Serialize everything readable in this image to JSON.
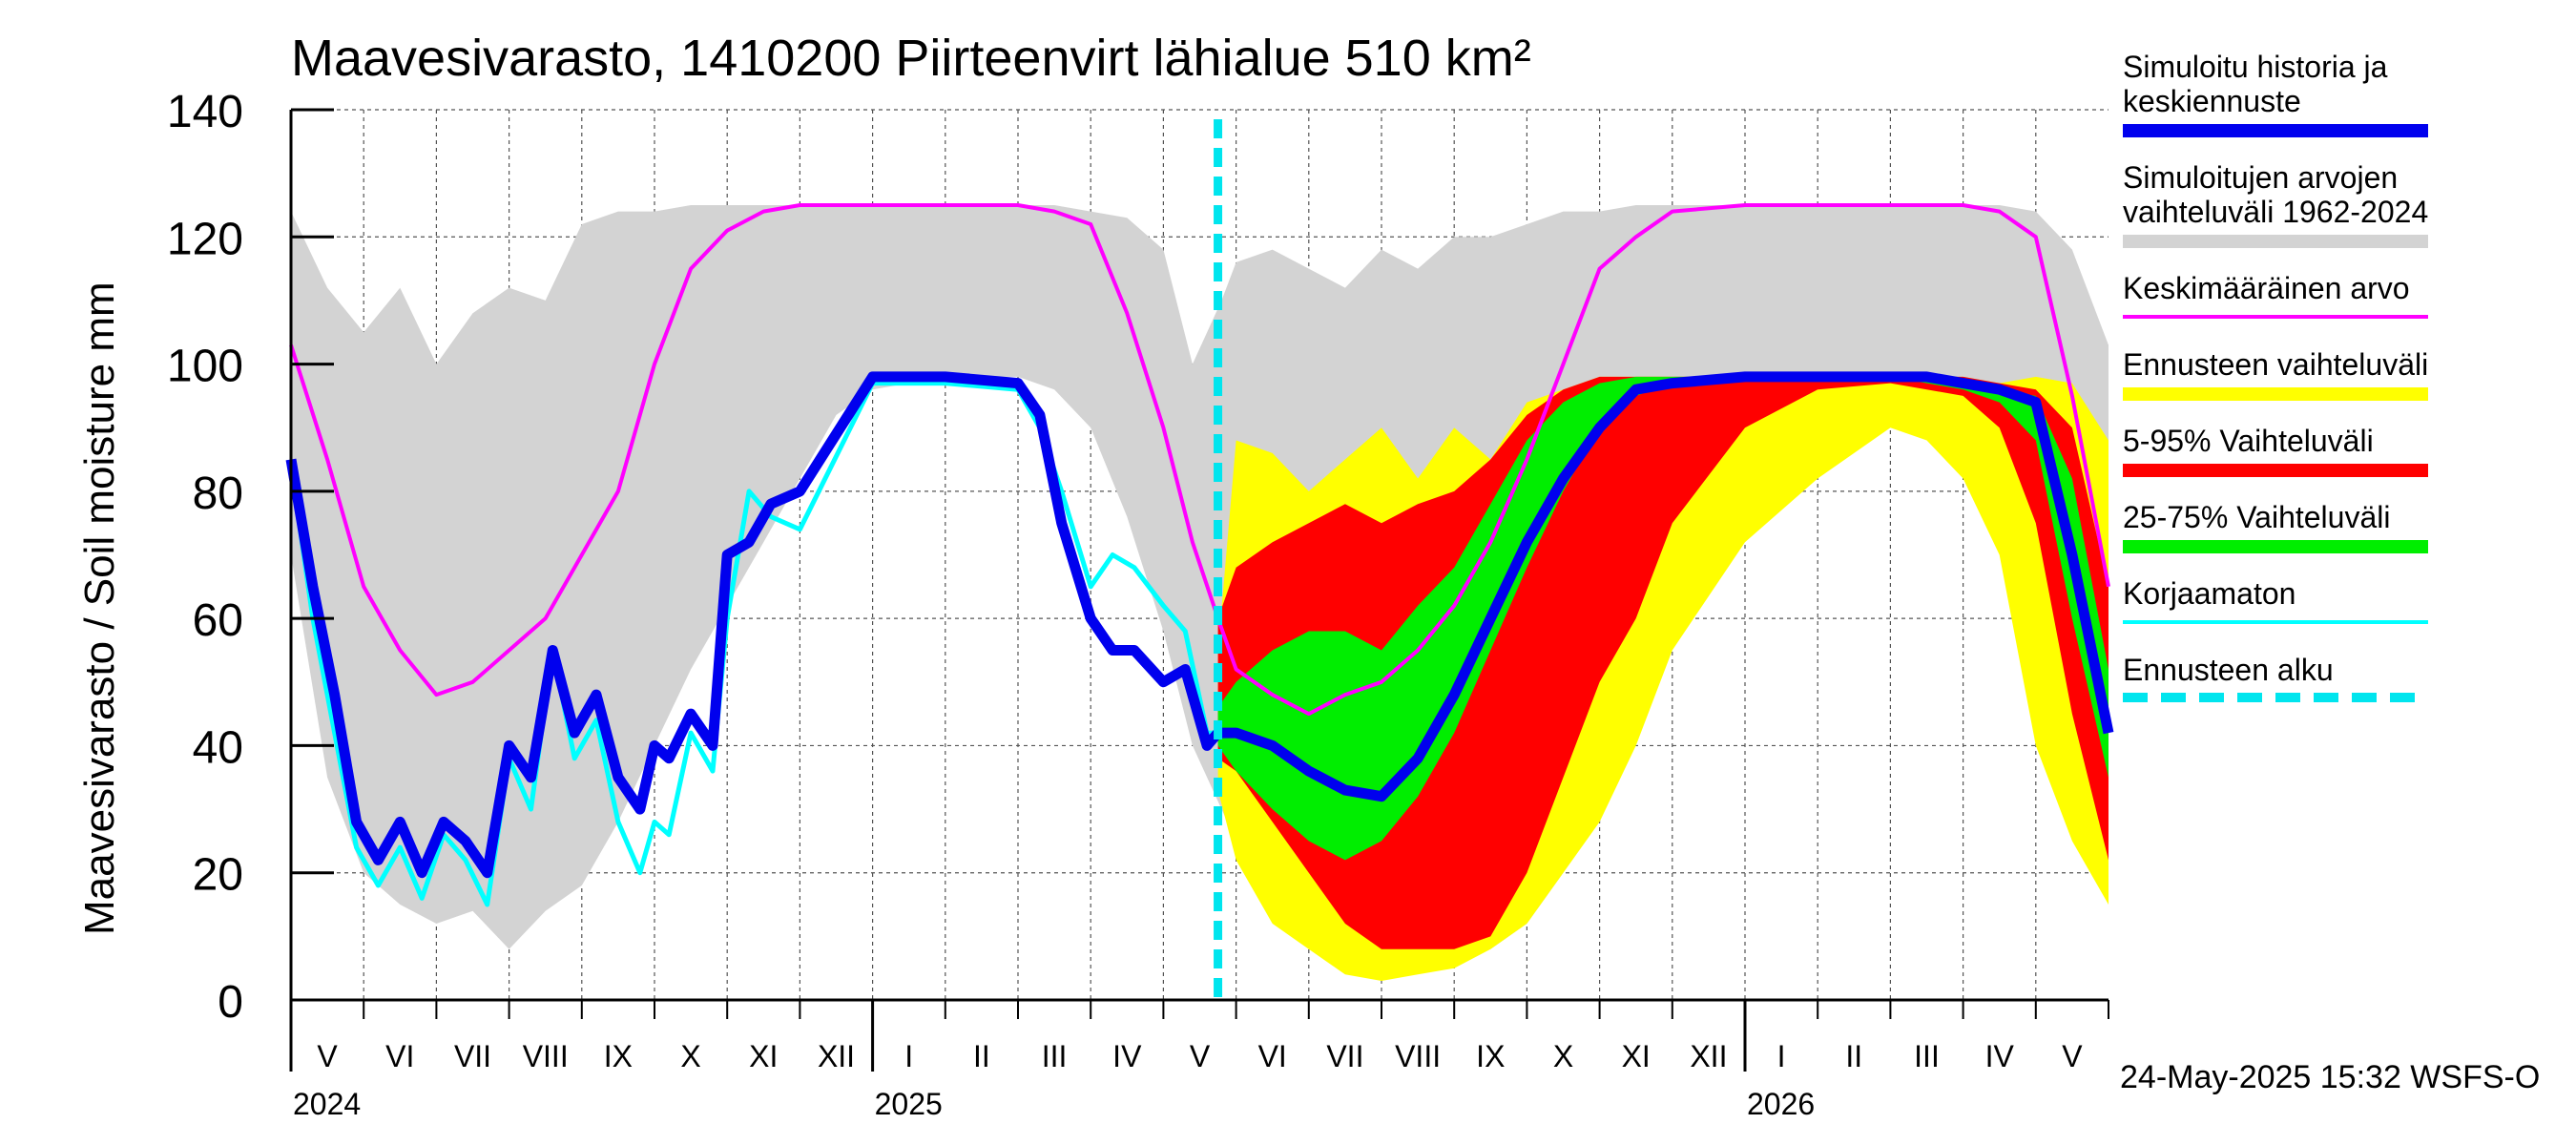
{
  "title": "Maavesivarasto, 1410200 Piirteenvirt lähialue 510 km²",
  "ylabel": "Maavesivarasto / Soil moisture   mm",
  "timestamp": "24-May-2025 15:32 WSFS-O",
  "legend": [
    {
      "label": "Simuloitu historia ja keskiennuste",
      "color": "#0000ee",
      "style": "thick"
    },
    {
      "label": "Simuloitujen arvojen vaihteluväli 1962-2024",
      "color": "#d3d3d3",
      "style": "thick"
    },
    {
      "label": "Keskimääräinen arvo",
      "color": "#ff00ff",
      "style": "thin"
    },
    {
      "label": "Ennusteen vaihteluväli",
      "color": "#ffff00",
      "style": "thick"
    },
    {
      "label": "5-95% Vaihteluväli",
      "color": "#ff0000",
      "style": "thick"
    },
    {
      "label": "25-75% Vaihteluväli",
      "color": "#00ee00",
      "style": "thick"
    },
    {
      "label": "Korjaamaton",
      "color": "#00ffff",
      "style": "thin"
    },
    {
      "label": "Ennusteen alku",
      "color": "#00e5ee",
      "style": "dashed"
    }
  ],
  "chart_data": {
    "type": "area",
    "ylim": [
      0,
      140
    ],
    "yticks": [
      0,
      20,
      40,
      60,
      80,
      100,
      120,
      140
    ],
    "xlim_months": [
      0,
      25
    ],
    "x_unit": "months since 2024-05-01",
    "month_labels": [
      "V",
      "VI",
      "VII",
      "VIII",
      "IX",
      "X",
      "XI",
      "XII",
      "I",
      "II",
      "III",
      "IV",
      "V",
      "VI",
      "VII",
      "VIII",
      "IX",
      "X",
      "XI",
      "XII",
      "I",
      "II",
      "III",
      "IV",
      "V"
    ],
    "year_labels": [
      {
        "label": "2024",
        "month": 0
      },
      {
        "label": "2025",
        "month": 8
      },
      {
        "label": "2026",
        "month": 20
      }
    ],
    "forecast_start": 12.75,
    "grid": true,
    "series": [
      {
        "name": "Simuloitujen arvojen vaihteluväli 1962-2024 (upper)",
        "color": "#d3d3d3",
        "x": [
          0,
          0.5,
          1,
          1.5,
          2,
          2.5,
          3,
          3.5,
          4,
          4.5,
          5,
          5.5,
          6,
          6.5,
          7,
          7.5,
          8,
          9,
          10,
          10.5,
          11,
          11.5,
          12,
          12.4,
          12.8,
          13,
          13.5,
          14,
          14.5,
          15,
          15.5,
          16,
          16.5,
          17,
          17.5,
          18,
          18.5,
          19,
          20,
          21,
          22,
          22.5,
          23,
          23.5,
          24,
          24.5,
          25
        ],
        "values": [
          124,
          112,
          105,
          112,
          100,
          108,
          112,
          110,
          122,
          124,
          124,
          125,
          125,
          125,
          125,
          125,
          125,
          125,
          125,
          125,
          124,
          123,
          118,
          100,
          110,
          116,
          118,
          115,
          112,
          118,
          115,
          120,
          120,
          122,
          124,
          124,
          125,
          125,
          125,
          125,
          125,
          125,
          125,
          125,
          124,
          118,
          103
        ]
      },
      {
        "name": "Simuloitujen arvojen vaihteluväli 1962-2024 (lower)",
        "color": "#d3d3d3",
        "x": [
          0,
          0.5,
          1,
          1.5,
          2,
          2.5,
          3,
          3.5,
          4,
          4.5,
          5,
          5.5,
          6,
          6.5,
          7,
          7.5,
          8,
          9,
          10,
          10.5,
          11,
          11.5,
          12,
          12.4,
          12.8,
          13,
          13.5,
          14,
          14.5,
          15,
          15.5,
          16,
          16.5,
          17,
          17.5,
          18,
          18.5,
          19,
          20,
          21,
          22,
          22.5,
          23,
          23.5,
          24,
          24.5,
          25
        ],
        "values": [
          70,
          35,
          20,
          15,
          12,
          14,
          8,
          14,
          18,
          28,
          40,
          52,
          62,
          72,
          82,
          92,
          96,
          98,
          98,
          96,
          90,
          76,
          58,
          40,
          30,
          25,
          18,
          12,
          8,
          6,
          5,
          6,
          8,
          12,
          20,
          30,
          45,
          62,
          80,
          96,
          98,
          98,
          97,
          92,
          70,
          28,
          22
        ]
      },
      {
        "name": "Ennusteen vaihteluväli (upper)",
        "color": "#ffff00",
        "x": [
          12.75,
          13,
          13.5,
          14,
          14.5,
          15,
          15.5,
          16,
          16.5,
          17,
          17.5,
          18,
          18.5,
          19,
          20,
          21,
          22,
          22.5,
          23,
          23.5,
          24,
          24.5,
          25
        ],
        "values": [
          55,
          88,
          86,
          80,
          85,
          90,
          82,
          90,
          85,
          94,
          96,
          98,
          98,
          98,
          98,
          98,
          98,
          98,
          98,
          97,
          98,
          97,
          88
        ]
      },
      {
        "name": "Ennusteen vaihteluväli (lower)",
        "color": "#ffff00",
        "x": [
          12.75,
          13,
          13.5,
          14,
          14.5,
          15,
          15.5,
          16,
          16.5,
          17,
          17.5,
          18,
          18.5,
          19,
          20,
          21,
          22,
          22.5,
          23,
          23.5,
          24,
          24.5,
          25
        ],
        "values": [
          33,
          22,
          12,
          8,
          4,
          3,
          4,
          5,
          8,
          12,
          20,
          28,
          40,
          55,
          72,
          82,
          90,
          88,
          82,
          70,
          40,
          25,
          15
        ]
      },
      {
        "name": "5-95% Vaihteluväli (upper)",
        "color": "#ff0000",
        "x": [
          12.75,
          13,
          13.5,
          14,
          14.5,
          15,
          15.5,
          16,
          16.5,
          17,
          17.5,
          18,
          18.5,
          19,
          20,
          21,
          22,
          22.5,
          23,
          23.5,
          24,
          24.5,
          25
        ],
        "values": [
          60,
          68,
          72,
          75,
          78,
          75,
          78,
          80,
          85,
          92,
          96,
          98,
          98,
          98,
          98,
          98,
          98,
          98,
          98,
          97,
          96,
          90,
          65
        ]
      },
      {
        "name": "5-95% Vaihteluväli (lower)",
        "color": "#ff0000",
        "x": [
          12.75,
          13,
          13.5,
          14,
          14.5,
          15,
          15.5,
          16,
          16.5,
          17,
          17.5,
          18,
          18.5,
          19,
          20,
          21,
          22,
          22.5,
          23,
          23.5,
          24,
          24.5,
          25
        ],
        "values": [
          38,
          36,
          28,
          20,
          12,
          8,
          8,
          8,
          10,
          20,
          35,
          50,
          60,
          75,
          90,
          96,
          97,
          96,
          95,
          90,
          75,
          45,
          22
        ]
      },
      {
        "name": "25-75% Vaihteluväli (upper)",
        "color": "#00ee00",
        "x": [
          12.75,
          13,
          13.5,
          14,
          14.5,
          15,
          15.5,
          16,
          16.5,
          17,
          17.5,
          18,
          18.5,
          19,
          20,
          21,
          22,
          22.5,
          23,
          23.5,
          24,
          24.5,
          25
        ],
        "values": [
          46,
          50,
          55,
          58,
          58,
          55,
          62,
          68,
          78,
          88,
          94,
          97,
          98,
          98,
          98,
          98,
          98,
          98,
          97,
          96,
          95,
          82,
          52
        ]
      },
      {
        "name": "25-75% Vaihteluväli (lower)",
        "color": "#00ee00",
        "x": [
          12.75,
          13,
          13.5,
          14,
          14.5,
          15,
          15.5,
          16,
          16.5,
          17,
          17.5,
          18,
          18.5,
          19,
          20,
          21,
          22,
          22.5,
          23,
          23.5,
          24,
          24.5,
          25
        ],
        "values": [
          40,
          36,
          30,
          25,
          22,
          25,
          32,
          42,
          55,
          68,
          80,
          90,
          95,
          97,
          98,
          98,
          98,
          97,
          96,
          94,
          88,
          60,
          35
        ]
      },
      {
        "name": "Keskimääräinen arvo",
        "color": "#ff00ff",
        "x": [
          0,
          0.5,
          1,
          1.5,
          2,
          2.5,
          3,
          3.5,
          4,
          4.5,
          5,
          5.5,
          6,
          6.5,
          7,
          7.5,
          8,
          9,
          10,
          10.5,
          11,
          11.5,
          12,
          12.4,
          12.75,
          13,
          13.5,
          14,
          14.5,
          15,
          15.5,
          16,
          16.5,
          17,
          17.5,
          18,
          18.5,
          19,
          20,
          21,
          22,
          22.5,
          23,
          23.5,
          24,
          24.5,
          25
        ],
        "values": [
          103,
          85,
          65,
          55,
          48,
          50,
          55,
          60,
          70,
          80,
          100,
          115,
          121,
          124,
          125,
          125,
          125,
          125,
          125,
          124,
          122,
          108,
          90,
          72,
          60,
          52,
          48,
          45,
          48,
          50,
          55,
          62,
          72,
          85,
          100,
          115,
          120,
          124,
          125,
          125,
          125,
          125,
          125,
          124,
          120,
          95,
          65
        ]
      },
      {
        "name": "Korjaamaton",
        "color": "#00ffff",
        "x": [
          0,
          0.3,
          0.6,
          0.9,
          1.2,
          1.5,
          1.8,
          2.1,
          2.4,
          2.7,
          3,
          3.3,
          3.6,
          3.9,
          4.2,
          4.5,
          4.8,
          5,
          5.2,
          5.5,
          5.8,
          6,
          6.3,
          6.6,
          7,
          8,
          9,
          10,
          10.3,
          10.6,
          11,
          11.3,
          11.6,
          12,
          12.3,
          12.6,
          12.75
        ],
        "values": [
          84,
          60,
          42,
          24,
          18,
          24,
          16,
          26,
          22,
          15,
          38,
          30,
          55,
          38,
          44,
          28,
          20,
          28,
          26,
          42,
          36,
          60,
          80,
          76,
          74,
          97,
          97,
          96,
          90,
          80,
          65,
          70,
          68,
          62,
          58,
          42,
          42
        ]
      },
      {
        "name": "Simuloitu historia ja keskiennuste",
        "color": "#0000ee",
        "x": [
          0,
          0.3,
          0.6,
          0.9,
          1.2,
          1.5,
          1.8,
          2.1,
          2.4,
          2.7,
          3,
          3.3,
          3.6,
          3.9,
          4.2,
          4.5,
          4.8,
          5,
          5.2,
          5.5,
          5.8,
          6,
          6.3,
          6.6,
          7,
          8,
          9,
          10,
          10.3,
          10.6,
          11,
          11.3,
          11.6,
          12,
          12.3,
          12.6,
          12.75,
          13,
          13.5,
          14,
          14.5,
          15,
          15.5,
          16,
          16.5,
          17,
          17.5,
          18,
          18.5,
          19,
          20,
          21,
          22,
          22.5,
          23,
          23.5,
          24,
          24.5,
          25
        ],
        "values": [
          85,
          65,
          48,
          28,
          22,
          28,
          20,
          28,
          25,
          20,
          40,
          35,
          55,
          42,
          48,
          35,
          30,
          40,
          38,
          45,
          40,
          70,
          72,
          78,
          80,
          98,
          98,
          97,
          92,
          75,
          60,
          55,
          55,
          50,
          52,
          40,
          42,
          42,
          40,
          36,
          33,
          32,
          38,
          48,
          60,
          72,
          82,
          90,
          96,
          97,
          98,
          98,
          98,
          98,
          97,
          96,
          94,
          70,
          42
        ]
      }
    ]
  }
}
